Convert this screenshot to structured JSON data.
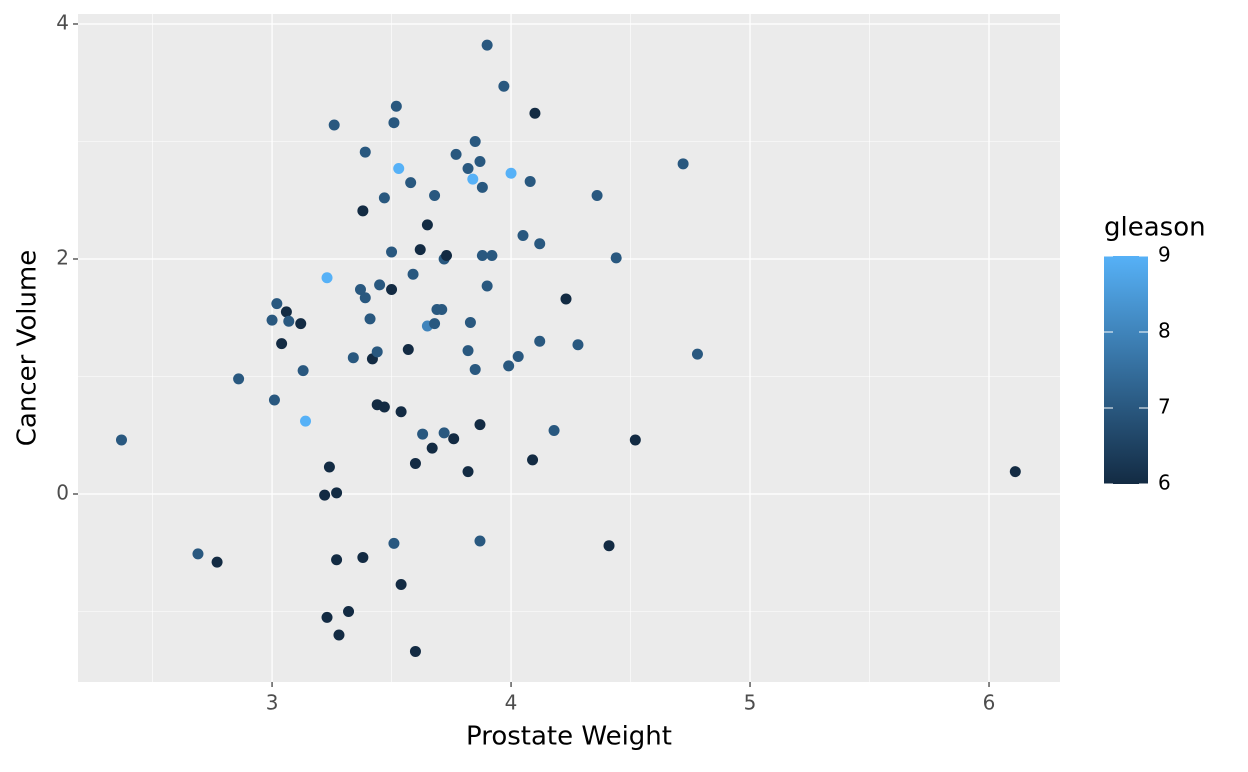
{
  "chart_data": {
    "type": "scatter",
    "x_label": "Prostate Weight",
    "y_label": "Cancer Volume",
    "x": [
      2.37,
      2.69,
      2.77,
      2.86,
      3.0,
      3.01,
      3.02,
      3.04,
      3.06,
      3.07,
      3.12,
      3.13,
      3.14,
      3.23,
      3.26,
      3.24,
      3.22,
      3.27,
      3.27,
      3.23,
      3.28,
      3.32,
      3.34,
      3.38,
      3.37,
      3.38,
      3.39,
      3.39,
      3.41,
      3.42,
      3.44,
      3.44,
      3.45,
      3.47,
      3.47,
      3.5,
      3.5,
      3.51,
      3.52,
      3.53,
      3.51,
      3.54,
      3.54,
      3.57,
      3.58,
      3.59,
      3.6,
      3.6,
      3.62,
      3.63,
      3.65,
      3.65,
      3.67,
      3.68,
      3.68,
      3.69,
      3.71,
      3.72,
      3.72,
      3.73,
      3.76,
      3.77,
      3.82,
      3.82,
      3.82,
      3.83,
      3.84,
      3.85,
      3.85,
      3.87,
      3.87,
      3.87,
      3.88,
      3.88,
      3.9,
      3.9,
      3.92,
      3.97,
      3.99,
      4.0,
      4.03,
      4.05,
      4.08,
      4.09,
      4.1,
      4.12,
      4.12,
      4.18,
      4.23,
      4.28,
      4.36,
      4.41,
      4.44,
      4.52,
      4.72,
      4.78,
      6.11
    ],
    "y": [
      0.46,
      -0.51,
      -0.58,
      0.98,
      1.48,
      0.8,
      1.62,
      1.28,
      1.55,
      1.47,
      1.45,
      1.05,
      0.62,
      1.84,
      3.14,
      0.23,
      -0.01,
      0.01,
      -0.56,
      -1.05,
      -1.2,
      -1.0,
      1.16,
      -0.54,
      1.74,
      2.41,
      2.91,
      1.67,
      1.49,
      1.15,
      0.76,
      1.21,
      1.78,
      2.52,
      0.74,
      1.74,
      2.06,
      3.16,
      3.3,
      2.77,
      -0.42,
      0.7,
      -0.77,
      1.23,
      2.65,
      1.87,
      -1.34,
      0.26,
      2.08,
      0.51,
      2.29,
      1.43,
      0.39,
      2.54,
      1.45,
      1.57,
      1.57,
      2.0,
      0.52,
      2.03,
      0.47,
      2.89,
      2.77,
      1.22,
      0.19,
      1.46,
      2.68,
      3.0,
      1.06,
      -0.4,
      0.59,
      2.83,
      2.03,
      2.61,
      3.82,
      1.77,
      2.03,
      3.47,
      1.09,
      2.73,
      1.17,
      2.2,
      2.66,
      0.29,
      3.24,
      2.13,
      1.3,
      0.54,
      1.66,
      1.27,
      2.54,
      -0.44,
      2.01,
      0.46,
      2.81,
      1.19,
      0.19
    ],
    "color_values": [
      7,
      7,
      6,
      7,
      7,
      7,
      7,
      6,
      6,
      7,
      6,
      7,
      9,
      9,
      7,
      6,
      6,
      6,
      6,
      6,
      6,
      6,
      7,
      6,
      7,
      6,
      7,
      7,
      7,
      6,
      6,
      7,
      7,
      7,
      6,
      6,
      7,
      7,
      7,
      9,
      7,
      6,
      6,
      6,
      7,
      7,
      6,
      6,
      6,
      7,
      6,
      8,
      6,
      7,
      7,
      7,
      7,
      7,
      7,
      6,
      6,
      7,
      7,
      7,
      6,
      7,
      9,
      7,
      7,
      7,
      6,
      7,
      7,
      7,
      7,
      7,
      7,
      7,
      7,
      9,
      7,
      7,
      7,
      6,
      6,
      7,
      7,
      7,
      6,
      7,
      7,
      6,
      7,
      6,
      7,
      7,
      6
    ],
    "color_scale": {
      "title": "gleason",
      "low": "#132B43",
      "high": "#56B1F7",
      "limits": [
        6,
        9
      ],
      "ticks": [
        6,
        7,
        8,
        9
      ]
    },
    "xlim": [
      2.188,
      6.297
    ],
    "ylim": [
      -1.6,
      4.085
    ],
    "xticks": [
      3,
      4,
      5,
      6
    ],
    "yticks": [
      0,
      2,
      4
    ],
    "grid": true
  }
}
